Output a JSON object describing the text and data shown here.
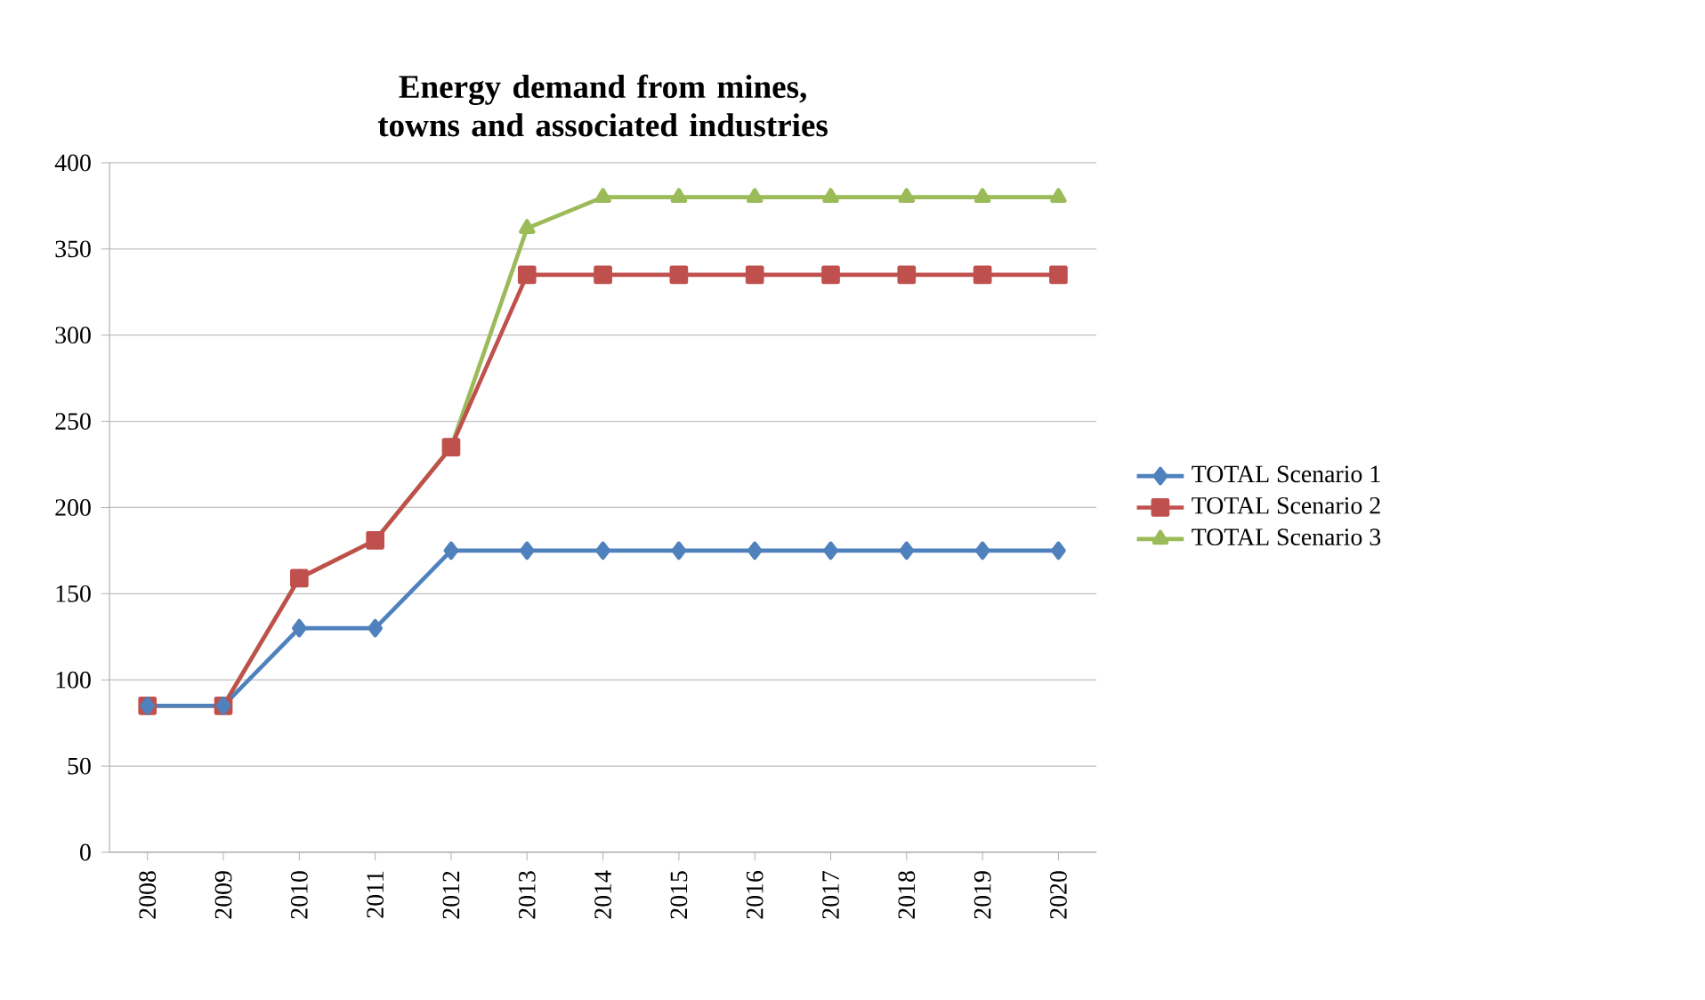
{
  "chart_data": {
    "type": "line",
    "title": "Energy demand from mines, towns and associated industries",
    "categories": [
      "2008",
      "2009",
      "2010",
      "2011",
      "2012",
      "2013",
      "2014",
      "2015",
      "2016",
      "2017",
      "2018",
      "2019",
      "2020"
    ],
    "series": [
      {
        "name": "TOTAL Scenario 1",
        "color": "#4f81bd",
        "marker": "diamond",
        "values": [
          85,
          85,
          130,
          130,
          175,
          175,
          175,
          175,
          175,
          175,
          175,
          175,
          175
        ]
      },
      {
        "name": "TOTAL Scenario 2",
        "color": "#c0504d",
        "marker": "square",
        "values": [
          85,
          85,
          159,
          181,
          235,
          335,
          335,
          335,
          335,
          335,
          335,
          335,
          335
        ]
      },
      {
        "name": "TOTAL Scenario 3",
        "color": "#9bbb59",
        "marker": "triangle",
        "values": [
          85,
          85,
          159,
          181,
          235,
          362,
          380,
          380,
          380,
          380,
          380,
          380,
          380
        ]
      }
    ],
    "ylim": [
      0,
      400
    ],
    "yticks": [
      0,
      50,
      100,
      150,
      200,
      250,
      300,
      350,
      400
    ],
    "grid": "y",
    "legend": "right"
  }
}
